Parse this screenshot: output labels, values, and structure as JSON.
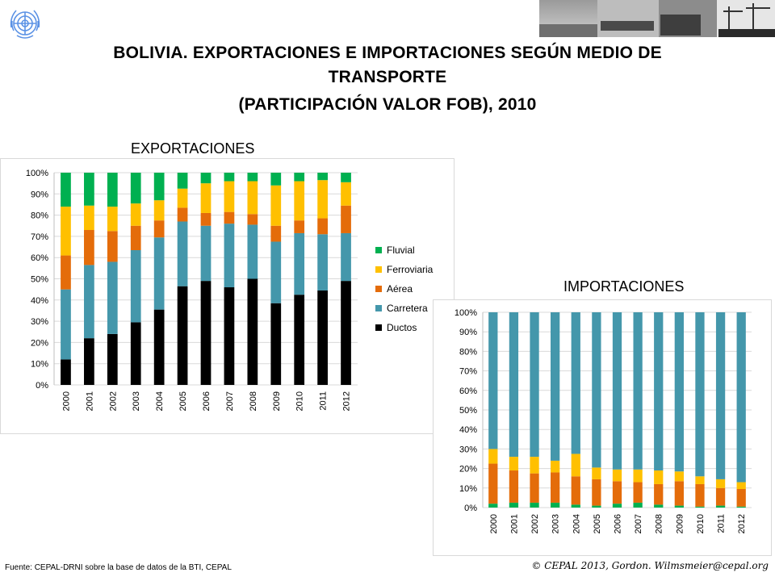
{
  "title": {
    "line1": "BOLIVIA. EXPORTACIONES E IMPORTACIONES SEGÚN MEDIO DE",
    "line2": "TRANSPORTE",
    "line3": "(PARTICIPACIÓN VALOR FOB), 2010"
  },
  "footer": {
    "source": "Fuente: CEPAL-DRNI sobre la base de datos de la BTI, CEPAL",
    "copyright": "© CEPAL 2013, Gordon. Wilmsmeier@cepal.org"
  },
  "colors": {
    "Ductos": "#000000",
    "Carretera": "#4497ab",
    "Aérea": "#e46c0a",
    "Ferroviaria": "#ffc000",
    "Fluvial": "#00b050"
  },
  "chart_data": [
    {
      "type": "bar",
      "stacked": true,
      "title": "EXPORTACIONES",
      "categories": [
        "2000",
        "2001",
        "2002",
        "2003",
        "2004",
        "2005",
        "2006",
        "2007",
        "2008",
        "2009",
        "2010",
        "2011",
        "2012"
      ],
      "yticks": [
        "0%",
        "10%",
        "20%",
        "30%",
        "40%",
        "50%",
        "60%",
        "70%",
        "80%",
        "90%",
        "100%"
      ],
      "ylim": [
        0,
        100
      ],
      "legend_position": "right",
      "series": [
        {
          "name": "Ductos",
          "values": [
            12,
            22,
            24,
            29.5,
            35.5,
            46.5,
            49,
            46,
            50,
            38.5,
            42.5,
            44.5,
            49
          ]
        },
        {
          "name": "Carretera",
          "values": [
            33,
            34.5,
            34,
            34,
            34,
            30.5,
            26,
            30,
            25.5,
            29,
            29,
            26.5,
            22.5
          ]
        },
        {
          "name": "Aérea",
          "values": [
            16,
            16.5,
            14.5,
            11.5,
            8,
            6.5,
            6,
            5.5,
            5,
            7.5,
            6,
            7.5,
            13
          ]
        },
        {
          "name": "Ferroviaria",
          "values": [
            23,
            11.5,
            11.5,
            10.5,
            9.5,
            9,
            14,
            14.5,
            15.5,
            19,
            18.5,
            18,
            11
          ]
        },
        {
          "name": "Fluvial",
          "values": [
            16,
            15.5,
            16,
            14.5,
            13,
            7.5,
            5,
            4,
            4,
            6,
            4,
            3.5,
            4.5
          ]
        }
      ]
    },
    {
      "type": "bar",
      "stacked": true,
      "title": "IMPORTACIONES",
      "categories": [
        "2000",
        "2001",
        "2002",
        "2003",
        "2004",
        "2005",
        "2006",
        "2007",
        "2008",
        "2009",
        "2010",
        "2011",
        "2012"
      ],
      "yticks": [
        "0%",
        "10%",
        "20%",
        "30%",
        "40%",
        "50%",
        "60%",
        "70%",
        "80%",
        "90%",
        "100%"
      ],
      "ylim": [
        0,
        100
      ],
      "series": [
        {
          "name": "Ductos",
          "values": [
            0,
            0,
            0,
            0,
            0,
            0,
            0,
            0,
            0,
            0,
            0,
            0,
            0
          ]
        },
        {
          "name": "Fluvial",
          "values": [
            2,
            2.5,
            2.5,
            2.5,
            1.5,
            1,
            2,
            2.5,
            1.5,
            1,
            0.5,
            1,
            0.5
          ]
        },
        {
          "name": "Aérea",
          "values": [
            20.5,
            16.5,
            15,
            15.5,
            14.5,
            13.5,
            11.5,
            10.5,
            10.5,
            12.5,
            11.5,
            9,
            9
          ]
        },
        {
          "name": "Ferroviaria",
          "values": [
            7.5,
            7,
            8.5,
            6,
            11.5,
            6,
            6,
            6.5,
            7,
            5,
            4,
            4.5,
            3.5
          ]
        },
        {
          "name": "Carretera",
          "values": [
            70,
            74,
            74,
            76,
            72.5,
            79.5,
            80.5,
            80.5,
            81,
            81.5,
            84,
            85.5,
            87
          ]
        }
      ]
    }
  ]
}
